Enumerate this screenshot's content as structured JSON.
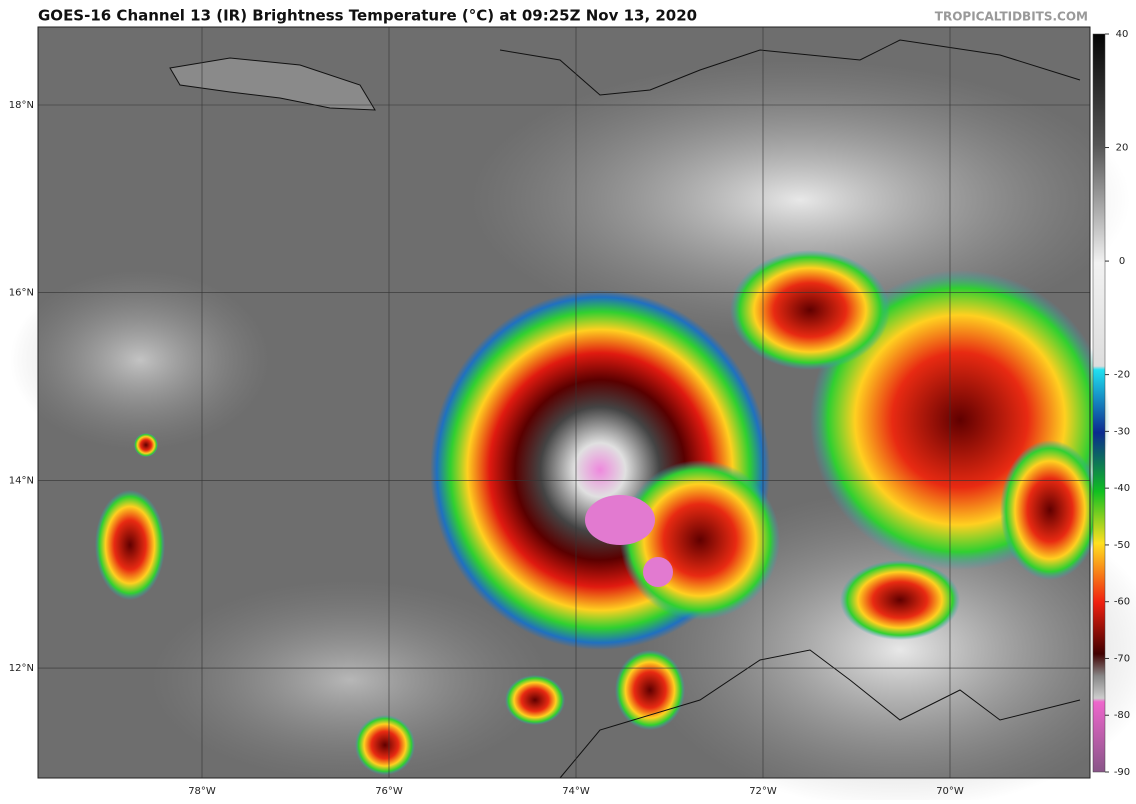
{
  "title": "GOES-16 Channel 13 (IR) Brightness Temperature (°C) at 09:25Z Nov 13, 2020",
  "credit": "TROPICALTIDBITS.COM",
  "latitude_labels": [
    "18°N",
    "16°N",
    "14°N",
    "12°N"
  ],
  "longitude_labels": [
    "78°W",
    "76°W",
    "74°W",
    "72°W",
    "70°W"
  ],
  "colorbar": {
    "range": [
      -90,
      40
    ],
    "ticks": [
      40,
      20,
      0,
      -20,
      -30,
      -40,
      -50,
      -60,
      -70,
      -80,
      -90
    ]
  }
}
